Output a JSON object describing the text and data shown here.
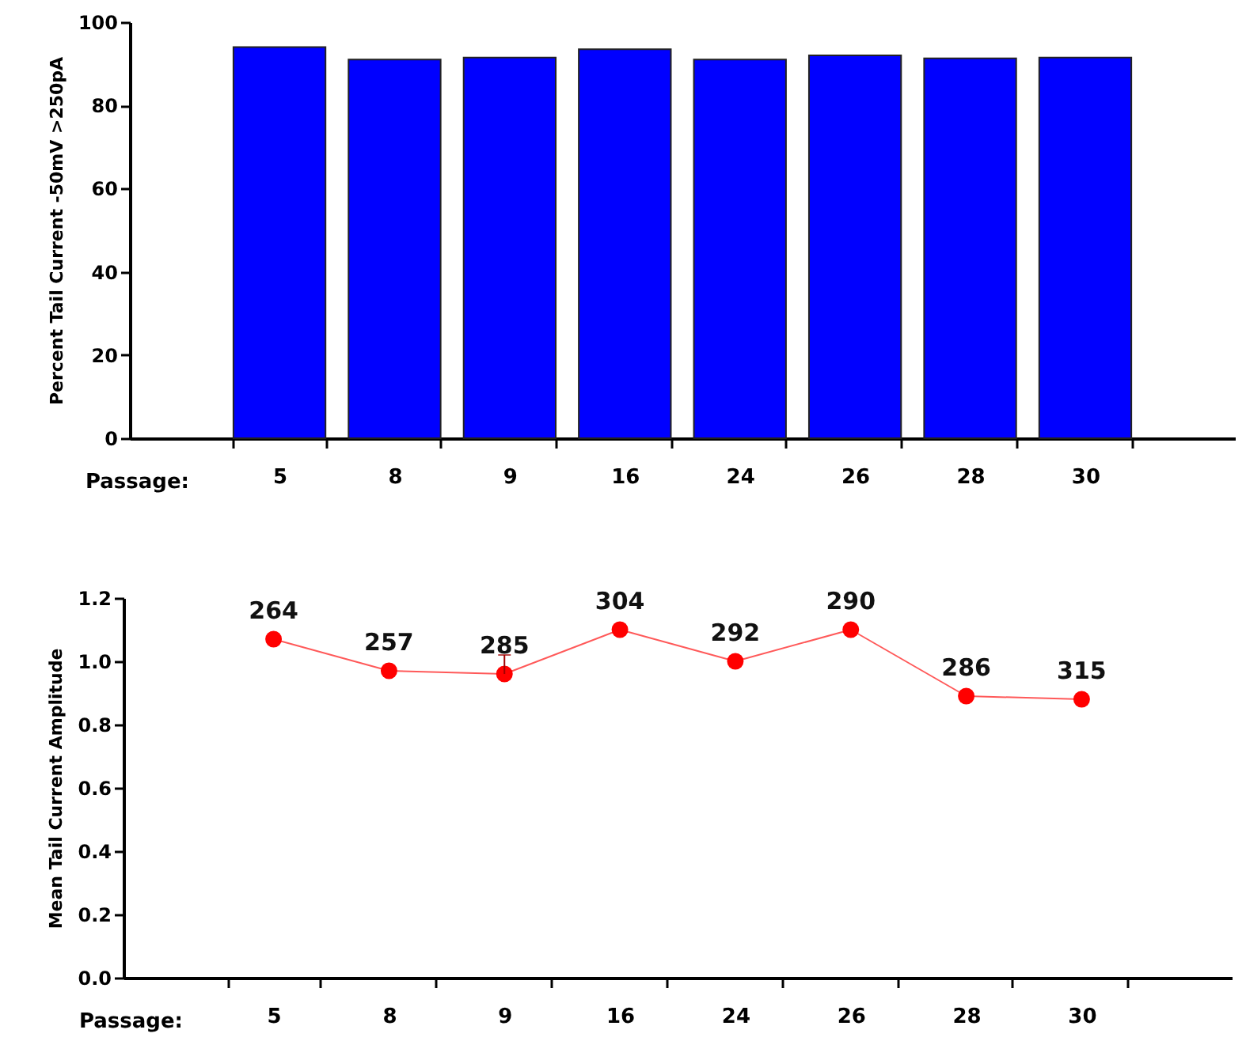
{
  "chart_data": [
    {
      "type": "bar",
      "categories": [
        "5",
        "8",
        "9",
        "16",
        "24",
        "26",
        "28",
        "30"
      ],
      "values": [
        94,
        91,
        91.5,
        93.5,
        91,
        92,
        91.3,
        91.5
      ],
      "color": "#0000ff",
      "xlabel": "Passage:",
      "ylabel": "Percent Tail Current -50mV >250pA",
      "ylim": [
        0,
        100
      ],
      "yticks": [
        0,
        20,
        40,
        60,
        80,
        100
      ]
    },
    {
      "type": "line",
      "categories": [
        "5",
        "8",
        "9",
        "16",
        "24",
        "26",
        "28",
        "30"
      ],
      "values": [
        1.07,
        0.97,
        0.96,
        1.1,
        1.0,
        1.1,
        0.89,
        0.88
      ],
      "errors": [
        null,
        null,
        [
          0.96,
          1.02
        ],
        null,
        null,
        null,
        null,
        null
      ],
      "annotations": [
        {
          "text": "264",
          "x": "5",
          "y": 1.07
        },
        {
          "text": "257",
          "x": "8",
          "y": 0.97
        },
        {
          "text": "285",
          "x": "9",
          "y": 0.96
        },
        {
          "text": "304",
          "x": "16",
          "y": 1.1
        },
        {
          "text": "292",
          "x": "24",
          "y": 1.0
        },
        {
          "text": "290",
          "x": "26",
          "y": 1.1
        },
        {
          "text": "286",
          "x": "28",
          "y": 0.89
        },
        {
          "text": "315",
          "x": "30",
          "y": 0.88
        }
      ],
      "color": "#ff0000",
      "marker": "circle",
      "line_style": "solid",
      "xlabel": "Passage:",
      "ylabel": "Mean Tail Current Amplitude",
      "ylim": [
        0,
        1.2
      ],
      "yticks": [
        {
          "value": 0,
          "label": "0.0"
        },
        {
          "value": 0.2,
          "label": "0.2"
        },
        {
          "value": 0.4,
          "label": "0.4"
        },
        {
          "value": 0.6,
          "label": "0.6"
        },
        {
          "value": 0.8,
          "label": "0.8"
        },
        {
          "value": 1.0,
          "label": "1.0"
        },
        {
          "value": 1.2,
          "label": "1.2"
        }
      ]
    }
  ]
}
